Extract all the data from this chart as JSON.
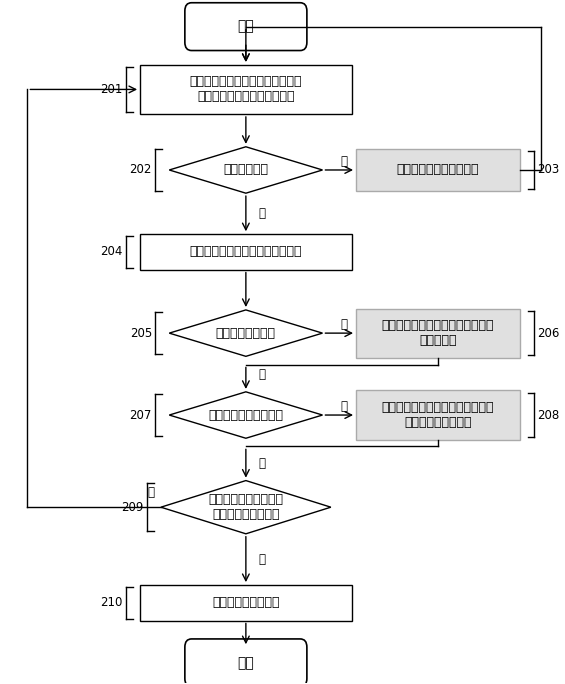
{
  "background_color": "#ffffff",
  "figsize": [
    5.65,
    6.84
  ],
  "dpi": 100,
  "nodes": {
    "start": {
      "text": "开始"
    },
    "s201": {
      "text": "初始化电能、温度采集、数据通信\n等外围设备，并读取配置信息",
      "label": "201"
    },
    "s202": {
      "text": "外设是否正常",
      "label": "202"
    },
    "s203": {
      "text": "设备异常信号指示灯闪烁",
      "label": "203"
    },
    "s204": {
      "text": "采集实时环境温度、实时电能参数",
      "label": "204"
    },
    "s205": {
      "text": "检测温度是否异常",
      "label": "205"
    },
    "s206": {
      "text": "添加温度异常标志，温度异常信号\n指示灯闪烁",
      "label": "206"
    },
    "s207": {
      "text": "检测电能参数是否异常",
      "label": "207"
    },
    "s208": {
      "text": "添加电能参数异常标志，电能参数\n异常信号指示灯闪烁",
      "label": "208"
    },
    "s209": {
      "text": "检测是否已到上报时间\n或是否有异常标志位",
      "label": "209"
    },
    "s210": {
      "text": "数据包发送至上位端",
      "label": "210"
    },
    "end": {
      "text": "结束"
    }
  },
  "text_color": "#000000",
  "arrow_color": "#000000",
  "side_box_color": "#e0e0e0",
  "side_box_edge": "#aaaaaa"
}
